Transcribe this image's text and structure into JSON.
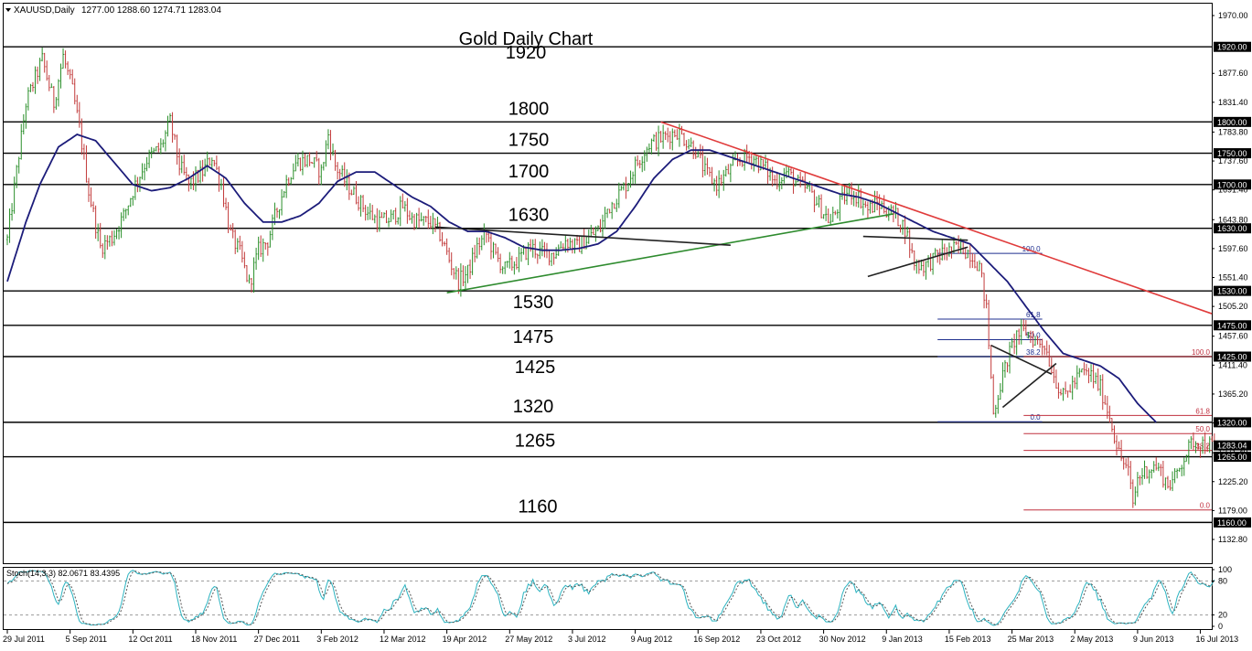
{
  "window": {
    "symbol_header": "XAUUSD,Daily",
    "ohlc": "1277.00 1288.60 1274.71 1283.04"
  },
  "chart_data": [
    {
      "type": "line",
      "title": "Gold Daily Chart",
      "ylim": [
        1132.8,
        1970.0
      ],
      "x_range_bars": [
        0,
        519
      ],
      "y_tick_labels": [
        "1970.00",
        "1877.60",
        "1831.40",
        "1783.80",
        "1737.60",
        "1691.40",
        "1643.80",
        "1597.60",
        "1551.40",
        "1505.20",
        "1457.60",
        "1411.40",
        "1365.20",
        "1319.00",
        "1271.40",
        "1225.20",
        "1179.00",
        "1132.80"
      ],
      "x_tick_labels": [
        {
          "bar": 0,
          "label": "29 Jul 2011"
        },
        {
          "bar": 27,
          "label": "5 Sep 2011"
        },
        {
          "bar": 54,
          "label": "12 Oct 2011"
        },
        {
          "bar": 81,
          "label": "18 Nov 2011"
        },
        {
          "bar": 108,
          "label": "27 Dec 2011"
        },
        {
          "bar": 135,
          "label": "3 Feb 2012"
        },
        {
          "bar": 162,
          "label": "12 Mar 2012"
        },
        {
          "bar": 189,
          "label": "19 Apr 2012"
        },
        {
          "bar": 216,
          "label": "27 May 2012"
        },
        {
          "bar": 243,
          "label": "3 Jul 2012"
        },
        {
          "bar": 270,
          "label": "9 Aug 2012"
        },
        {
          "bar": 297,
          "label": "16 Sep 2012"
        },
        {
          "bar": 324,
          "label": "23 Oct 2012"
        },
        {
          "bar": 351,
          "label": "30 Nov 2012"
        },
        {
          "bar": 378,
          "label": "9 Jan 2013"
        },
        {
          "bar": 405,
          "label": "15 Feb 2013"
        },
        {
          "bar": 432,
          "label": "25 Mar 2013"
        },
        {
          "bar": 459,
          "label": "2 May 2013"
        },
        {
          "bar": 486,
          "label": "9 Jun 2013"
        },
        {
          "bar": 513,
          "label": "16 Jul 2013"
        }
      ],
      "levels": [
        {
          "value": 1920,
          "label": "1920",
          "tag": "1920.00"
        },
        {
          "value": 1800,
          "label": "1800",
          "tag": "1800.00"
        },
        {
          "value": 1750,
          "label": "1750",
          "tag": "1750.00"
        },
        {
          "value": 1700,
          "label": "1700",
          "tag": "1700.00"
        },
        {
          "value": 1630,
          "label": "1630",
          "tag": "1630.00"
        },
        {
          "value": 1530,
          "label": "1530",
          "tag": "1530.00"
        },
        {
          "value": 1475,
          "label": "1475",
          "tag": "1475.00"
        },
        {
          "value": 1425,
          "label": "1425",
          "tag": "1425.00"
        },
        {
          "value": 1320,
          "label": "1320",
          "tag": "1320.00"
        },
        {
          "value": 1265,
          "label": "1265",
          "tag": "1265.00"
        },
        {
          "value": 1160,
          "label": "1160",
          "tag": "1160.00"
        }
      ],
      "current_price_tag": "1283.04",
      "current_price": 1283.04,
      "price_anchors": [
        [
          0,
          1612
        ],
        [
          8,
          1830
        ],
        [
          15,
          1900
        ],
        [
          20,
          1830
        ],
        [
          24,
          1905
        ],
        [
          28,
          1850
        ],
        [
          31,
          1790
        ],
        [
          35,
          1690
        ],
        [
          40,
          1600
        ],
        [
          45,
          1615
        ],
        [
          50,
          1650
        ],
        [
          55,
          1700
        ],
        [
          60,
          1740
        ],
        [
          66,
          1760
        ],
        [
          70,
          1800
        ],
        [
          74,
          1730
        ],
        [
          78,
          1700
        ],
        [
          84,
          1720
        ],
        [
          88,
          1745
        ],
        [
          92,
          1700
        ],
        [
          96,
          1620
        ],
        [
          100,
          1590
        ],
        [
          104,
          1540
        ],
        [
          108,
          1595
        ],
        [
          112,
          1610
        ],
        [
          116,
          1660
        ],
        [
          120,
          1705
        ],
        [
          124,
          1735
        ],
        [
          130,
          1740
        ],
        [
          135,
          1720
        ],
        [
          138,
          1780
        ],
        [
          141,
          1730
        ],
        [
          146,
          1700
        ],
        [
          150,
          1680
        ],
        [
          155,
          1655
        ],
        [
          160,
          1640
        ],
        [
          165,
          1645
        ],
        [
          170,
          1665
        ],
        [
          174,
          1645
        ],
        [
          178,
          1640
        ],
        [
          182,
          1640
        ],
        [
          186,
          1620
        ],
        [
          190,
          1580
        ],
        [
          194,
          1545
        ],
        [
          198,
          1560
        ],
        [
          202,
          1600
        ],
        [
          206,
          1620
        ],
        [
          210,
          1585
        ],
        [
          214,
          1565
        ],
        [
          220,
          1580
        ],
        [
          225,
          1600
        ],
        [
          230,
          1590
        ],
        [
          235,
          1590
        ],
        [
          240,
          1610
        ],
        [
          245,
          1600
        ],
        [
          250,
          1615
        ],
        [
          255,
          1630
        ],
        [
          258,
          1660
        ],
        [
          262,
          1680
        ],
        [
          266,
          1700
        ],
        [
          270,
          1730
        ],
        [
          276,
          1765
        ],
        [
          282,
          1775
        ],
        [
          288,
          1785
        ],
        [
          292,
          1770
        ],
        [
          296,
          1755
        ],
        [
          300,
          1720
        ],
        [
          305,
          1700
        ],
        [
          310,
          1720
        ],
        [
          315,
          1740
        ],
        [
          320,
          1745
        ],
        [
          326,
          1725
        ],
        [
          330,
          1705
        ],
        [
          335,
          1720
        ],
        [
          340,
          1700
        ],
        [
          345,
          1690
        ],
        [
          350,
          1660
        ],
        [
          354,
          1640
        ],
        [
          358,
          1670
        ],
        [
          362,
          1690
        ],
        [
          366,
          1680
        ],
        [
          370,
          1660
        ],
        [
          374,
          1670
        ],
        [
          378,
          1660
        ],
        [
          382,
          1650
        ],
        [
          386,
          1630
        ],
        [
          390,
          1575
        ],
        [
          394,
          1570
        ],
        [
          398,
          1580
        ],
        [
          402,
          1590
        ],
        [
          406,
          1595
        ],
        [
          410,
          1600
        ],
        [
          414,
          1590
        ],
        [
          418,
          1570
        ],
        [
          421,
          1500
        ],
        [
          424,
          1335
        ],
        [
          427,
          1380
        ],
        [
          430,
          1420
        ],
        [
          434,
          1460
        ],
        [
          438,
          1465
        ],
        [
          442,
          1450
        ],
        [
          446,
          1445
        ],
        [
          450,
          1395
        ],
        [
          454,
          1360
        ],
        [
          458,
          1380
        ],
        [
          462,
          1400
        ],
        [
          466,
          1395
        ],
        [
          470,
          1375
        ],
        [
          474,
          1330
        ],
        [
          478,
          1270
        ],
        [
          482,
          1240
        ],
        [
          484,
          1190
        ],
        [
          486,
          1230
        ],
        [
          490,
          1245
        ],
        [
          494,
          1250
        ],
        [
          496,
          1240
        ],
        [
          499,
          1220
        ],
        [
          502,
          1230
        ],
        [
          506,
          1265
        ],
        [
          510,
          1290
        ],
        [
          514,
          1285
        ],
        [
          518,
          1283
        ]
      ],
      "ma_anchors": [
        [
          0,
          1545
        ],
        [
          8,
          1640
        ],
        [
          14,
          1700
        ],
        [
          22,
          1760
        ],
        [
          30,
          1780
        ],
        [
          38,
          1770
        ],
        [
          46,
          1735
        ],
        [
          54,
          1700
        ],
        [
          62,
          1690
        ],
        [
          70,
          1695
        ],
        [
          78,
          1710
        ],
        [
          86,
          1730
        ],
        [
          94,
          1710
        ],
        [
          102,
          1670
        ],
        [
          110,
          1640
        ],
        [
          118,
          1640
        ],
        [
          126,
          1650
        ],
        [
          134,
          1670
        ],
        [
          142,
          1705
        ],
        [
          150,
          1720
        ],
        [
          158,
          1720
        ],
        [
          166,
          1700
        ],
        [
          174,
          1680
        ],
        [
          182,
          1665
        ],
        [
          190,
          1640
        ],
        [
          198,
          1625
        ],
        [
          206,
          1625
        ],
        [
          214,
          1615
        ],
        [
          222,
          1600
        ],
        [
          230,
          1595
        ],
        [
          238,
          1595
        ],
        [
          246,
          1598
        ],
        [
          254,
          1605
        ],
        [
          262,
          1625
        ],
        [
          270,
          1665
        ],
        [
          278,
          1710
        ],
        [
          286,
          1740
        ],
        [
          294,
          1755
        ],
        [
          302,
          1755
        ],
        [
          310,
          1745
        ],
        [
          318,
          1735
        ],
        [
          326,
          1725
        ],
        [
          334,
          1715
        ],
        [
          342,
          1705
        ],
        [
          350,
          1695
        ],
        [
          358,
          1685
        ],
        [
          366,
          1680
        ],
        [
          374,
          1670
        ],
        [
          382,
          1655
        ],
        [
          390,
          1640
        ],
        [
          398,
          1625
        ],
        [
          406,
          1615
        ],
        [
          414,
          1605
        ],
        [
          422,
          1575
        ],
        [
          430,
          1545
        ],
        [
          438,
          1505
        ],
        [
          446,
          1465
        ],
        [
          454,
          1430
        ],
        [
          462,
          1420
        ],
        [
          470,
          1410
        ],
        [
          478,
          1390
        ],
        [
          486,
          1350
        ],
        [
          494,
          1320
        ]
      ],
      "trendlines": [
        {
          "name": "resistance",
          "color": "#e03b3b",
          "from": [
            281,
            1800
          ],
          "to": [
            540,
            1465
          ]
        },
        {
          "name": "support",
          "color": "#2e8b2e",
          "from": [
            189,
            1527
          ],
          "to": [
            381,
            1653
          ]
        },
        {
          "name": "flag-top",
          "color": "#222222",
          "from": [
            184,
            1632
          ],
          "to": [
            311,
            1603
          ]
        },
        {
          "name": "tri1-top",
          "color": "#222222",
          "from": [
            368,
            1617
          ],
          "to": [
            413,
            1611
          ]
        },
        {
          "name": "tri1-bottom",
          "color": "#222222",
          "from": [
            370,
            1553
          ],
          "to": [
            413,
            1600
          ]
        },
        {
          "name": "tri2-top",
          "color": "#222222",
          "from": [
            423,
            1443
          ],
          "to": [
            449,
            1397
          ]
        },
        {
          "name": "tri2-bottom",
          "color": "#222222",
          "from": [
            428,
            1344
          ],
          "to": [
            451,
            1414
          ]
        }
      ],
      "fibonacci": [
        {
          "color": "#1f2f8f",
          "from_bar": 400,
          "to_bar": 445,
          "levels": [
            {
              "label": "100.0",
              "value": 1590
            },
            {
              "label": "61.8",
              "value": 1485
            },
            {
              "label": "50.0",
              "value": 1452
            },
            {
              "label": "38.2",
              "value": 1425
            },
            {
              "label": "0.0",
              "value": 1321
            }
          ]
        },
        {
          "color": "#c0303f",
          "from_bar": 437,
          "to_bar": 520,
          "levels": [
            {
              "label": "100.0",
              "value": 1425
            },
            {
              "label": "61.8",
              "value": 1331
            },
            {
              "label": "50.0",
              "value": 1302
            },
            {
              "label": "38.2",
              "value": 1275
            },
            {
              "label": "0.0",
              "value": 1180
            }
          ]
        }
      ],
      "colors": {
        "up": "#2a8f2a",
        "down": "#c23b3b",
        "ma": "#1c1c7a",
        "level": "#000000"
      }
    },
    {
      "type": "line",
      "title": "Stoch(14,3,3) 82.0671 83.4395",
      "ylim": [
        0,
        100
      ],
      "y_tick_labels": [
        "100",
        "80",
        "20",
        "0"
      ],
      "stoch_main": 82.0671,
      "stoch_signal": 83.4395
    }
  ]
}
